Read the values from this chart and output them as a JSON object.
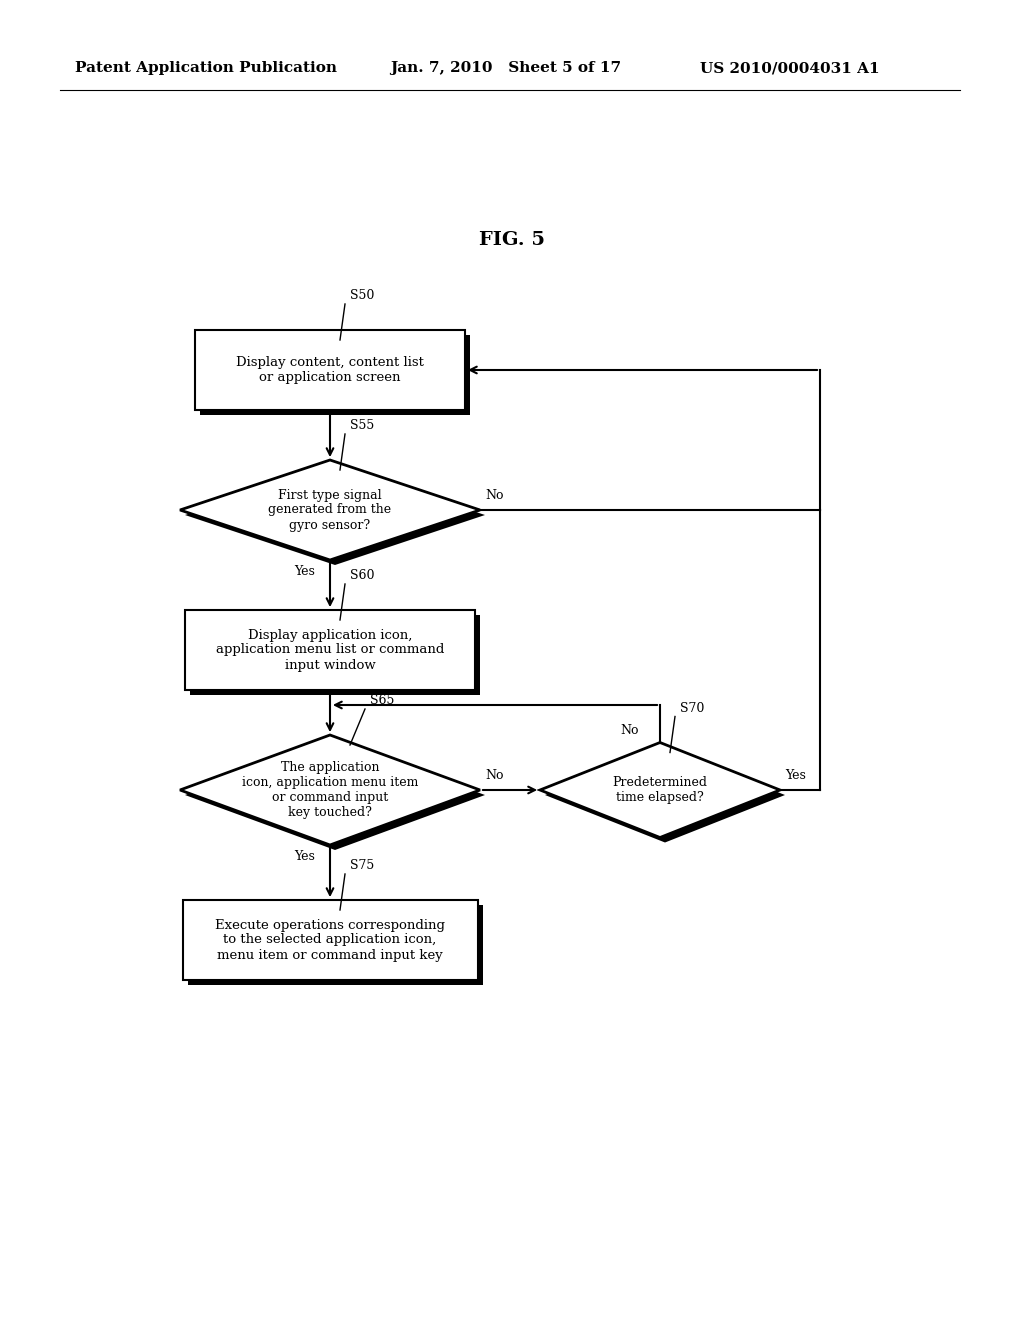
{
  "fig_title": "FIG. 5",
  "header_left": "Patent Application Publication",
  "header_mid": "Jan. 7, 2010   Sheet 5 of 17",
  "header_right": "US 2010/0004031 A1",
  "background_color": "#ffffff",
  "s50_label": "Display content, content list\nor application screen",
  "s55_label": "First type signal\ngenerated from the\ngyro sensor?",
  "s60_label": "Display application icon,\napplication menu list or command\ninput window",
  "s65_label": "The application\nicon, application menu item\nor command input\nkey touched?",
  "s70_label": "Predetermined\ntime elapsed?",
  "s75_label": "Execute operations corresponding\nto the selected application icon,\nmenu item or command input key",
  "yes_label": "Yes",
  "no_label": "No",
  "step_ids": [
    "S50",
    "S55",
    "S60",
    "S65",
    "S70",
    "S75"
  ]
}
